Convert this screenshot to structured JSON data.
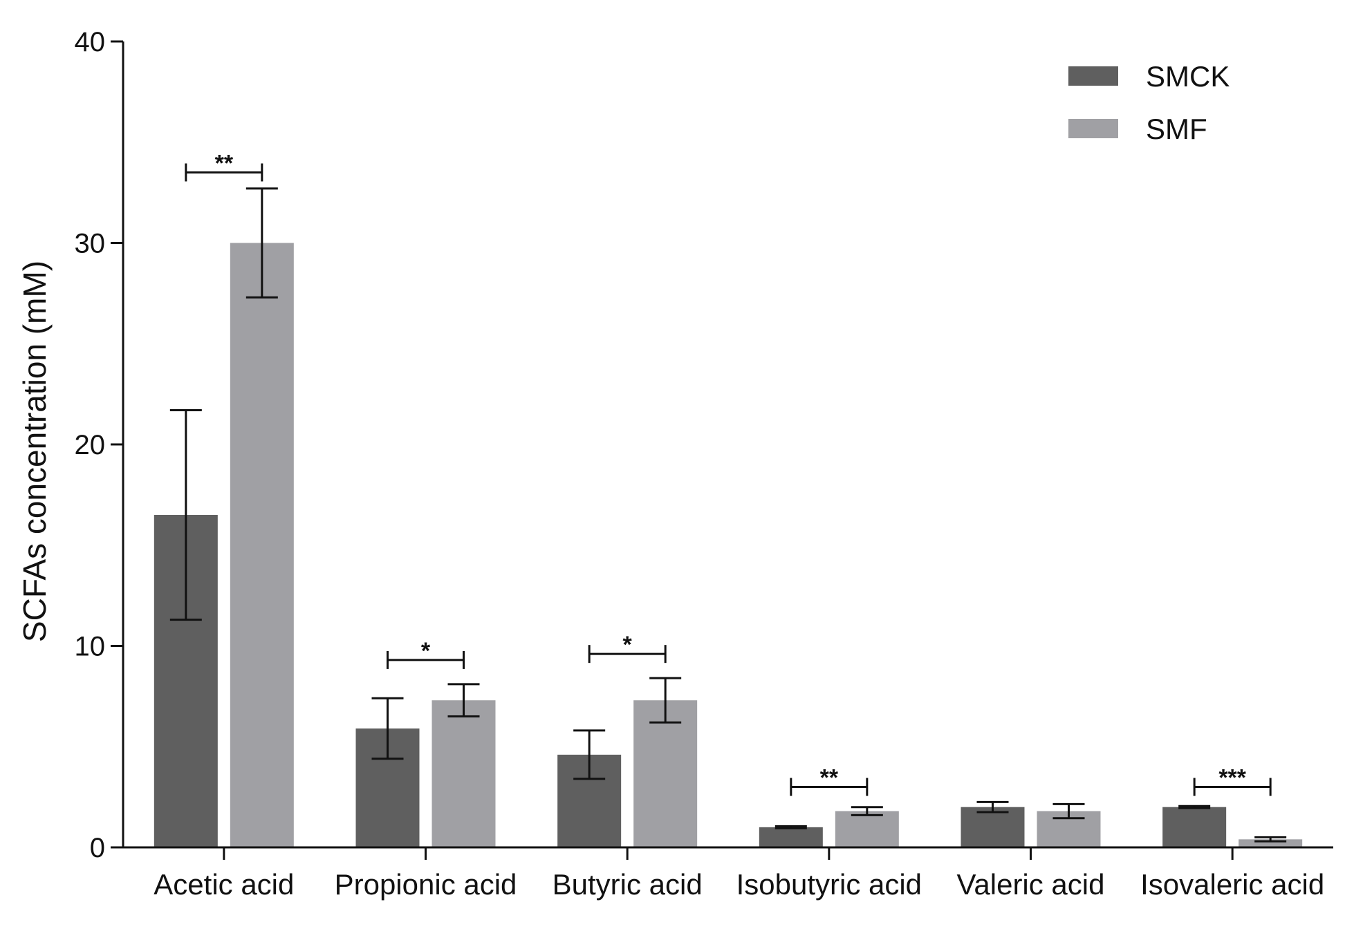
{
  "chart_data": {
    "type": "bar",
    "xlabel": "",
    "ylabel": "SCFAs concentration (mM)",
    "ylim": [
      0,
      40
    ],
    "yticks": [
      0,
      10,
      20,
      30,
      40
    ],
    "grid": false,
    "legend_position": "top-right",
    "categories": [
      "Acetic acid",
      "Propionic acid",
      "Butyric acid",
      "Isobutyric acid",
      "Valeric acid",
      "Isovaleric acid"
    ],
    "series": [
      {
        "name": "SMCK",
        "color": "#5f5f5f",
        "values": [
          16.5,
          5.9,
          4.6,
          1.0,
          2.0,
          2.0
        ],
        "error": [
          5.2,
          1.5,
          1.2,
          0.05,
          0.25,
          0.05
        ]
      },
      {
        "name": "SMF",
        "color": "#a0a0a4",
        "values": [
          30.0,
          7.3,
          7.3,
          1.8,
          1.8,
          0.4
        ],
        "error": [
          2.7,
          0.8,
          1.1,
          0.2,
          0.35,
          0.1
        ]
      }
    ],
    "significance": [
      {
        "category": "Acetic acid",
        "label": "**",
        "bracket_y": 33.5
      },
      {
        "category": "Propionic acid",
        "label": "*",
        "bracket_y": 9.3
      },
      {
        "category": "Butyric acid",
        "label": "*",
        "bracket_y": 9.6
      },
      {
        "category": "Isobutyric acid",
        "label": "**",
        "bracket_y": 3.0
      },
      {
        "category": "Isovaleric acid",
        "label": "***",
        "bracket_y": 3.0
      }
    ]
  }
}
